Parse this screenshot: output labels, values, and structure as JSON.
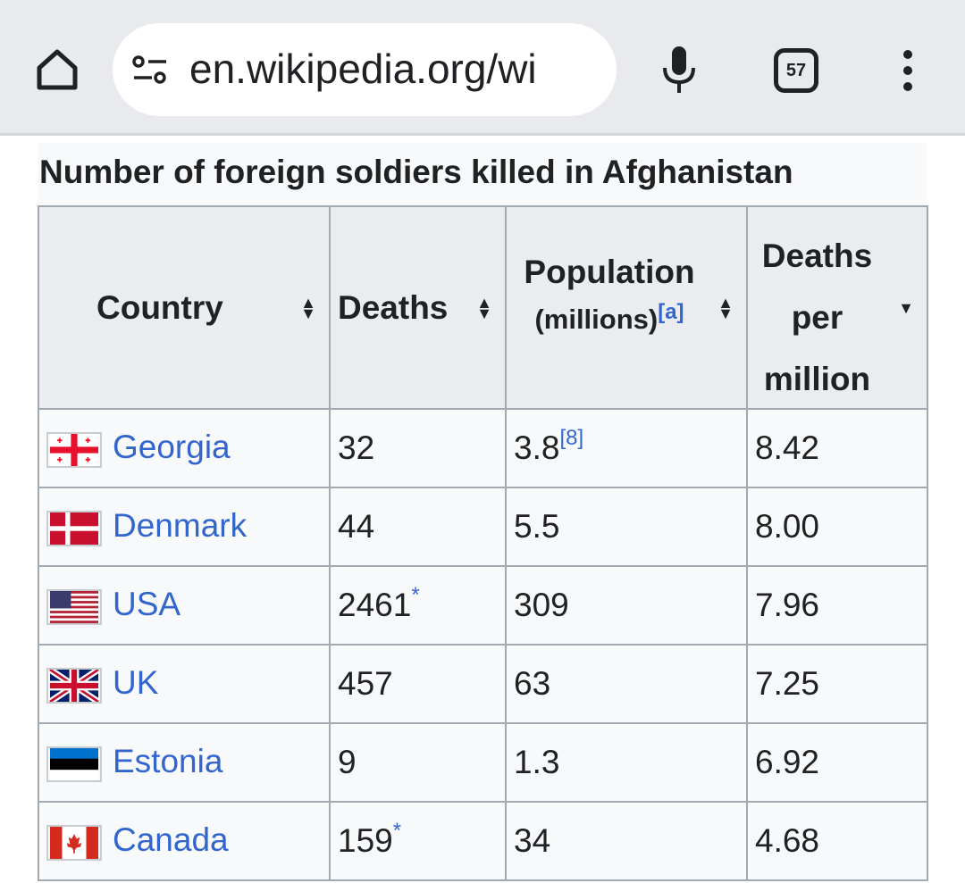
{
  "browser": {
    "url": "en.wikipedia.org/wi",
    "tab_count": "57"
  },
  "table": {
    "caption": "Number of foreign soldiers killed in Afghanistan",
    "headers": {
      "country": "Country",
      "deaths": "Deaths",
      "population": "Population",
      "population_unit": "(millions)",
      "population_note": "[a]",
      "dpm_1": "Deaths",
      "dpm_2": "per",
      "dpm_3": "million"
    },
    "rows": [
      {
        "country": "Georgia",
        "deaths": "32",
        "deaths_note": "",
        "population": "3.8",
        "population_note": "[8]",
        "dpm": "8.42"
      },
      {
        "country": "Denmark",
        "deaths": "44",
        "deaths_note": "",
        "population": "5.5",
        "population_note": "",
        "dpm": "8.00"
      },
      {
        "country": "USA",
        "deaths": "2461",
        "deaths_note": "*",
        "population": "309",
        "population_note": "",
        "dpm": "7.96"
      },
      {
        "country": "UK",
        "deaths": "457",
        "deaths_note": "",
        "population": "63",
        "population_note": "",
        "dpm": "7.25"
      },
      {
        "country": "Estonia",
        "deaths": "9",
        "deaths_note": "",
        "population": "1.3",
        "population_note": "",
        "dpm": "6.92"
      },
      {
        "country": "Canada",
        "deaths": "159",
        "deaths_note": "*",
        "population": "34",
        "population_note": "",
        "dpm": "4.68"
      }
    ]
  }
}
